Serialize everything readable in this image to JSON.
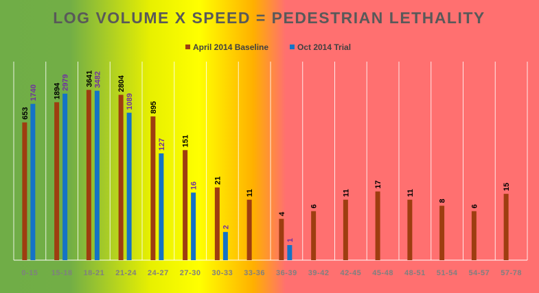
{
  "chart_data": {
    "type": "bar",
    "title": "LOG VOLUME X SPEED = PEDESTRIAN LETHALITY",
    "xlabel": "",
    "ylabel": "",
    "yscale": "log",
    "grid": "vertical",
    "legend_position": "top",
    "background": {
      "type": "horizontal-gradient",
      "stops": [
        {
          "offset": 0.0,
          "color": "#70AD47"
        },
        {
          "offset": 0.13,
          "color": "#72AE46"
        },
        {
          "offset": 0.28,
          "color": "#E8F000"
        },
        {
          "offset": 0.37,
          "color": "#FFFF00"
        },
        {
          "offset": 0.47,
          "color": "#FFB000"
        },
        {
          "offset": 0.53,
          "color": "#FF7070"
        },
        {
          "offset": 1.0,
          "color": "#FF7070"
        }
      ]
    },
    "categories": [
      "0-15",
      "15-18",
      "18-21",
      "21-24",
      "24-27",
      "27-30",
      "30-33",
      "33-36",
      "36-39",
      "39-42",
      "42-45",
      "45-48",
      "48-51",
      "51-54",
      "54-57",
      "57-78"
    ],
    "series": [
      {
        "name": "April 2014 Baseline",
        "color": "#9E3D10",
        "label_color": "#000000",
        "values": [
          653,
          1894,
          3641,
          2804,
          895,
          151,
          21,
          11,
          4,
          6,
          11,
          17,
          11,
          8,
          6,
          15
        ]
      },
      {
        "name": "Oct 2014 Trial",
        "color": "#1473C6",
        "label_color": "#7030A0",
        "values": [
          1740,
          2979,
          3482,
          1089,
          127,
          16,
          2,
          null,
          1,
          null,
          null,
          null,
          null,
          null,
          null,
          null
        ]
      }
    ],
    "title_color": "#595959",
    "tick_color": "#7F7F7F"
  }
}
